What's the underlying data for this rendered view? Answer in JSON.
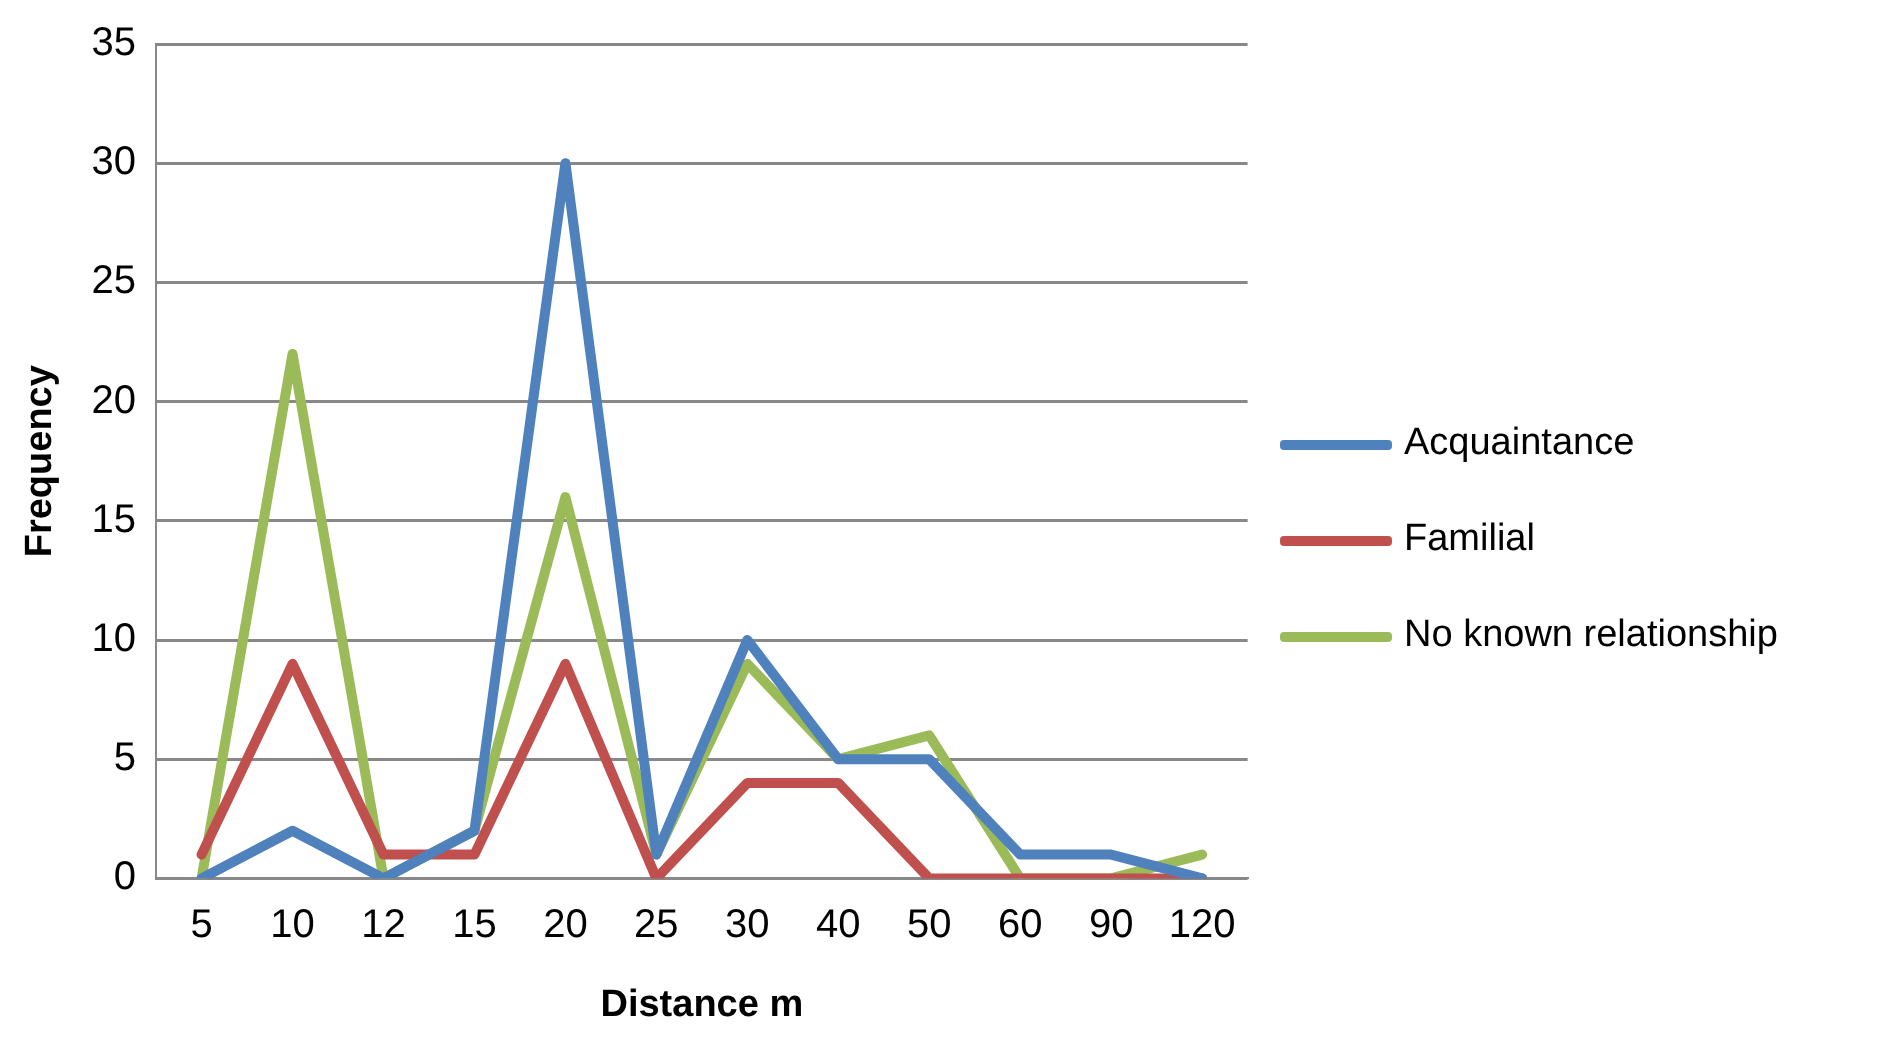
{
  "chart_data": {
    "type": "line",
    "xlabel": "Distance m",
    "ylabel": "Frequency",
    "categories": [
      "5",
      "10",
      "12",
      "15",
      "20",
      "25",
      "30",
      "40",
      "50",
      "60",
      "90",
      "120"
    ],
    "series": [
      {
        "name": "Acquaintance",
        "color": "#4f81bd",
        "values": [
          0,
          2,
          0,
          2,
          30,
          1,
          10,
          5,
          5,
          1,
          1,
          0
        ]
      },
      {
        "name": "Familial",
        "color": "#c0504d",
        "values": [
          1,
          9,
          1,
          1,
          9,
          0,
          4,
          4,
          0,
          0,
          0,
          0
        ]
      },
      {
        "name": "No known relationship",
        "color": "#9bbb59",
        "values": [
          0,
          22,
          0,
          2,
          16,
          1,
          9,
          5,
          6,
          0,
          0,
          1
        ]
      }
    ],
    "ylim": [
      0,
      35
    ],
    "yticks": [
      0,
      5,
      10,
      15,
      20,
      25,
      30,
      35
    ],
    "grid": "y",
    "legend": "right",
    "marker": "none",
    "line_style": "solid"
  }
}
